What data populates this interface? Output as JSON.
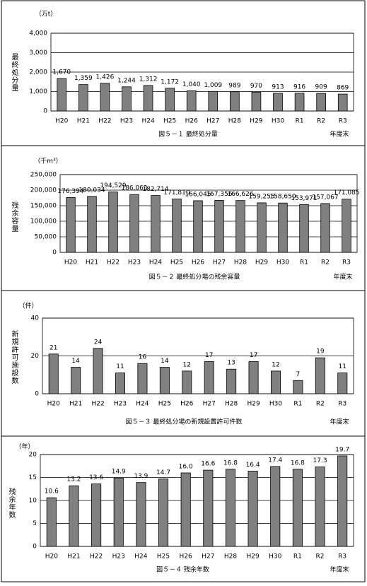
{
  "chart_data": [
    {
      "type": "bar",
      "unit": "（万t）",
      "y_label": "最終処分量",
      "caption": "図５－１ 最終処分量",
      "x_label": "年度末",
      "categories": [
        "H20",
        "H21",
        "H22",
        "H23",
        "H24",
        "H25",
        "H26",
        "H27",
        "H28",
        "H29",
        "H30",
        "R1",
        "R2",
        "R3"
      ],
      "values": [
        1670,
        1359,
        1426,
        1244,
        1312,
        1172,
        1040,
        1009,
        989,
        970,
        913,
        916,
        909,
        869
      ],
      "value_labels": [
        "1,670",
        "1,359",
        "1,426",
        "1,244",
        "1,312",
        "1,172",
        "1,040",
        "1,009",
        "989",
        "970",
        "913",
        "916",
        "909",
        "869"
      ],
      "ylim": [
        0,
        4000
      ],
      "yticks": [
        0,
        {
          "value": 1000,
          "label": "1,000"
        },
        {
          "value": 2000,
          "label": "2,000"
        },
        {
          "value": 3000,
          "label": "3,000"
        },
        {
          "value": 4000,
          "label": "4,000"
        }
      ],
      "color": "#808080",
      "grid": true
    },
    {
      "type": "bar",
      "unit": "（千m³）",
      "y_label": "残余容量",
      "caption": "図５－２ 最終処分場の残余容量",
      "x_label": "年度末",
      "categories": [
        "H20",
        "H21",
        "H22",
        "H23",
        "H24",
        "H25",
        "H26",
        "H27",
        "H28",
        "H29",
        "H30",
        "R1",
        "R2",
        "R3"
      ],
      "values": [
        176394,
        180034,
        194529,
        186063,
        182714,
        171810,
        166045,
        167356,
        166626,
        159255,
        158650,
        153971,
        157067,
        171085
      ],
      "value_labels": [
        "176,394",
        "180,034",
        "194,529",
        "186,063",
        "182,714",
        "171,810",
        "166,045",
        "167,356",
        "166,626",
        "159,255",
        "158,650",
        "153,971",
        "157,067",
        "171,085"
      ],
      "ylim": [
        0,
        250000
      ],
      "yticks": [
        0,
        {
          "value": 50000,
          "label": "50,000"
        },
        {
          "value": 100000,
          "label": "100,000"
        },
        {
          "value": 150000,
          "label": "150,000"
        },
        {
          "value": 200000,
          "label": "200,000"
        },
        {
          "value": 250000,
          "label": "250,000"
        }
      ],
      "color": "#808080",
      "grid": true
    },
    {
      "type": "bar",
      "unit": "（件）",
      "y_label": "新規許可施設数",
      "caption": "図５－３ 最終処分場の新規設置許可件数",
      "x_label": "年度末",
      "categories": [
        "H20",
        "H21",
        "H22",
        "H23",
        "H24",
        "H25",
        "H26",
        "H27",
        "H28",
        "H29",
        "H30",
        "R1",
        "R2",
        "R3"
      ],
      "values": [
        21,
        14,
        24,
        11,
        16,
        14,
        12,
        17,
        13,
        17,
        12,
        7,
        19,
        11
      ],
      "ylim": [
        0,
        40
      ],
      "yticks": [
        0,
        20,
        40
      ],
      "color": "#808080",
      "grid": true
    },
    {
      "type": "bar",
      "unit": "（年）",
      "y_label": "残余年数",
      "caption": "図５－４ 残余年数",
      "x_label": "年度末",
      "categories": [
        "H20",
        "H21",
        "H22",
        "H23",
        "H24",
        "H25",
        "H26",
        "H27",
        "H28",
        "H29",
        "H30",
        "R1",
        "R2",
        "R3"
      ],
      "values": [
        10.6,
        13.2,
        13.6,
        14.9,
        13.9,
        14.7,
        16.0,
        16.6,
        16.8,
        16.4,
        17.4,
        16.8,
        17.3,
        19.7
      ],
      "value_labels": [
        "10.6",
        "13.2",
        "13.6",
        "14.9",
        "13.9",
        "14.7",
        "16.0",
        "16.6",
        "16.8",
        "16.4",
        "17.4",
        "16.8",
        "17.3",
        "19.7"
      ],
      "ylim": [
        0,
        20
      ],
      "yticks": [
        0,
        5,
        10,
        15,
        20
      ],
      "color": "#808080",
      "grid": true
    }
  ]
}
